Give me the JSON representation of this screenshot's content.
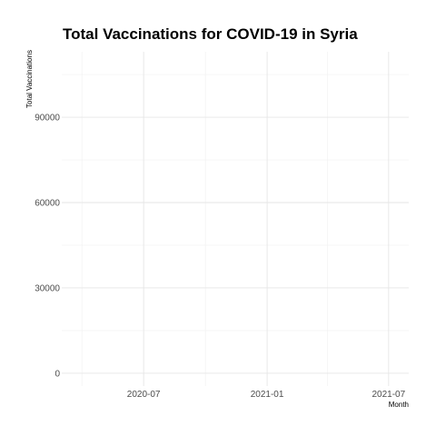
{
  "chart_data": {
    "type": "line",
    "title": "Total Vaccinations for COVID-19 in Syria",
    "xlabel": "Month",
    "ylabel": "Total Vaccinations",
    "x_ticks": [
      "2020-07",
      "2021-01",
      "2021-07"
    ],
    "y_ticks": [
      0,
      30000,
      60000,
      90000
    ],
    "xlim": [
      "2020-03-01",
      "2021-07-31"
    ],
    "ylim": [
      -4500,
      113000
    ],
    "grid": true,
    "legend": "none",
    "series": [
      {
        "values": []
      }
    ]
  }
}
